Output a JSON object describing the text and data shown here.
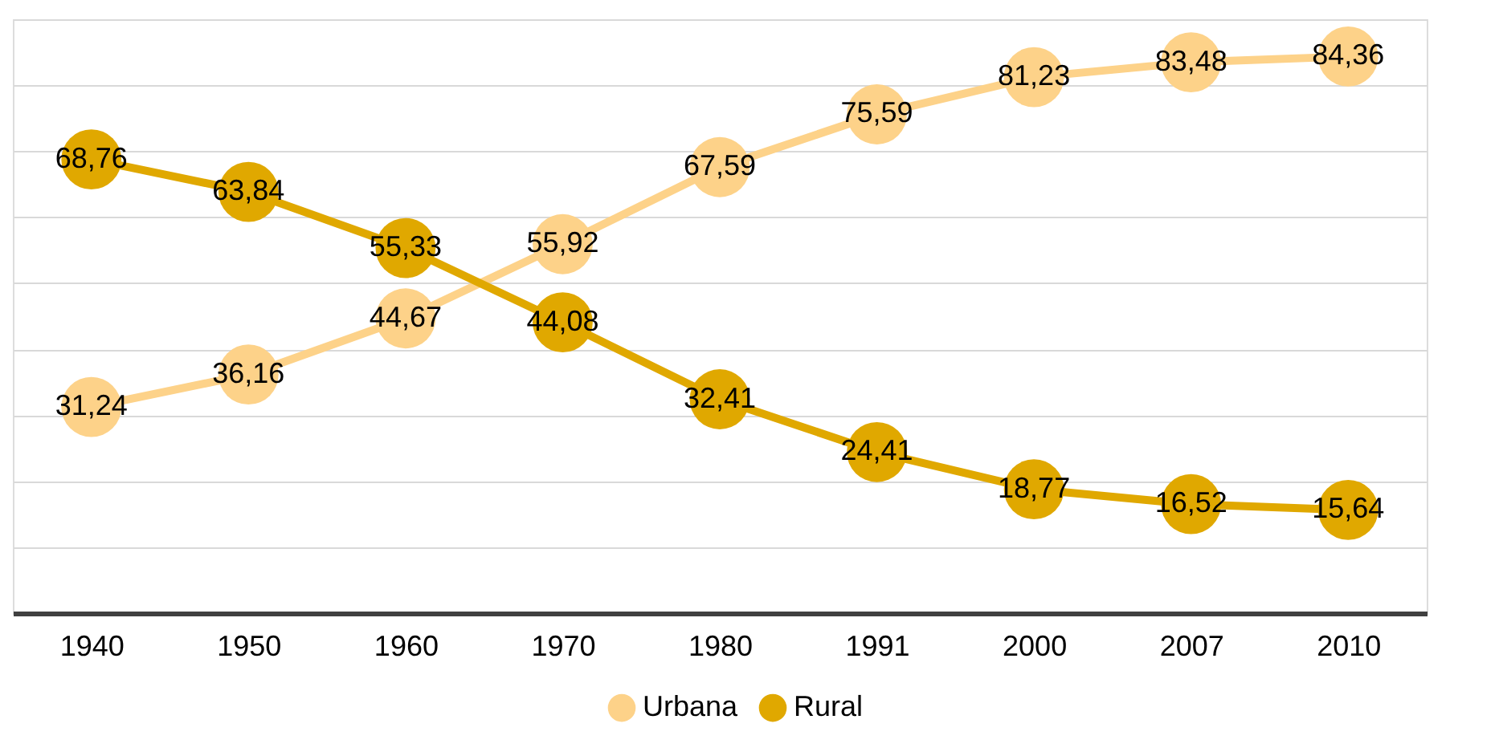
{
  "chart_data": {
    "type": "line",
    "categories": [
      "1940",
      "1950",
      "1960",
      "1970",
      "1980",
      "1991",
      "2000",
      "2007",
      "2010"
    ],
    "series": [
      {
        "name": "Urbana",
        "color": "#fdd289",
        "values": [
          31.24,
          36.16,
          44.67,
          55.92,
          67.59,
          75.59,
          81.23,
          83.48,
          84.36
        ],
        "value_labels": [
          "31,24",
          "36,16",
          "44,67",
          "55,92",
          "67,59",
          "75,59",
          "81,23",
          "83,48",
          "84,36"
        ]
      },
      {
        "name": "Rural",
        "color": "#e0a800",
        "values": [
          68.76,
          63.84,
          55.33,
          44.08,
          32.41,
          24.41,
          18.77,
          16.52,
          15.64
        ],
        "value_labels": [
          "68,76",
          "63,84",
          "55,33",
          "44,08",
          "32,41",
          "24,41",
          "18,77",
          "16,52",
          "15,64"
        ]
      }
    ],
    "ylim": [
      0,
      90
    ],
    "yticks": [
      {
        "value": 0,
        "label": null
      },
      {
        "value": 10,
        "label": null
      },
      {
        "value": 20,
        "label": null
      },
      {
        "value": 30,
        "label": null
      },
      {
        "value": 40,
        "label": null
      },
      {
        "value": 50,
        "label": null
      },
      {
        "value": 60,
        "label": null
      },
      {
        "value": 70,
        "label": null
      },
      {
        "value": 80,
        "label": null
      },
      {
        "value": 90,
        "label": null
      }
    ],
    "grid": "y",
    "legend": "bottom",
    "tick_labels": "x",
    "marker": "circle",
    "line_style": "solid"
  }
}
